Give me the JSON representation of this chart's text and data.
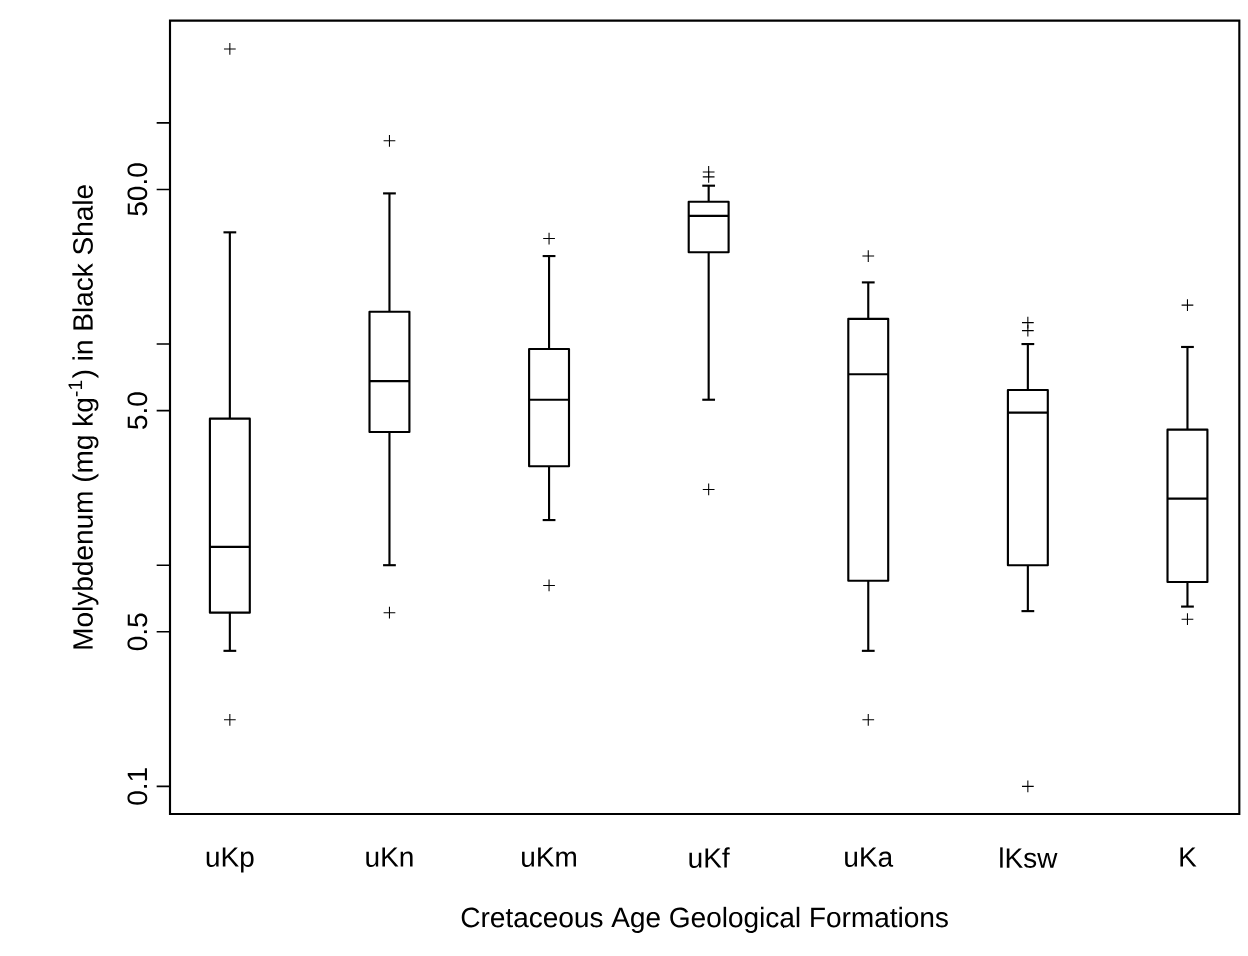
{
  "chart_data": {
    "type": "box",
    "xlabel": "Cretaceous Age Geological Formations",
    "ylabel": "Molybdenum (mg kg$^{-1}$) in Black Shale",
    "categories": [
      "uKp",
      "uKn",
      "uKm",
      "uKf",
      "uKa",
      "lKsw",
      "K"
    ],
    "boxes": [
      {
        "low": 0.41,
        "q1": 0.61,
        "median": 1.21,
        "q3": 4.6,
        "high": 32,
        "outliers": [
          0.2,
          216
        ]
      },
      {
        "low": 1.0,
        "q1": 4.0,
        "median": 6.8,
        "q3": 14,
        "high": 48,
        "outliers": [
          0.61,
          83
        ]
      },
      {
        "low": 1.6,
        "q1": 2.8,
        "median": 5.6,
        "q3": 9.5,
        "high": 25,
        "outliers": [
          0.81,
          30
        ]
      },
      {
        "low": 5.6,
        "q1": 26,
        "median": 38,
        "q3": 44,
        "high": 52,
        "outliers": [
          2.2,
          57,
          60
        ]
      },
      {
        "low": 0.41,
        "q1": 0.85,
        "median": 7.3,
        "q3": 13,
        "high": 19,
        "outliers": [
          0.2,
          25
        ]
      },
      {
        "low": 0.62,
        "q1": 1.0,
        "median": 4.9,
        "q3": 6.2,
        "high": 10,
        "outliers": [
          0.1,
          11.5,
          12.5
        ]
      },
      {
        "low": 0.65,
        "q1": 0.84,
        "median": 2.0,
        "q3": 4.1,
        "high": 9.7,
        "outliers": [
          0.57,
          15
        ]
      }
    ],
    "ylim": [
      0.075,
      290
    ],
    "yticks": [
      0.1,
      0.5,
      {
        "value": 1,
        "label": null
      },
      {
        "value": 5,
        "label": "5.0"
      },
      {
        "value": 10,
        "label": null
      },
      {
        "value": 50,
        "label": "50.0"
      },
      {
        "value": 100,
        "label": null
      }
    ],
    "log": "y",
    "marker": "cross",
    "grid": false
  }
}
